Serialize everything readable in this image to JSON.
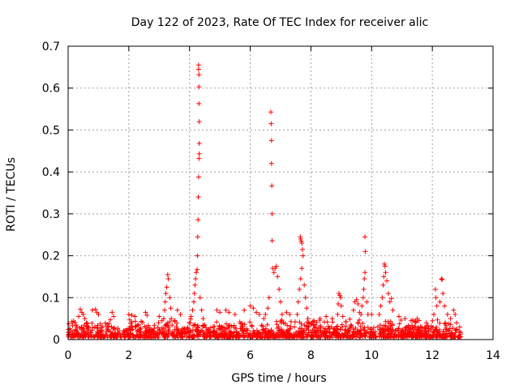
{
  "chart_data": {
    "type": "scatter",
    "title": "Day 122 of 2023, Rate Of TEC Index for receiver alic",
    "xlabel": "GPS time / hours",
    "ylabel": "ROTI / TECUs",
    "xlim": [
      0,
      14
    ],
    "ylim": [
      0,
      0.7
    ],
    "x_ticks": [
      "0",
      "2",
      "4",
      "6",
      "8",
      "10",
      "12",
      "14"
    ],
    "y_ticks": [
      "0",
      "0.1",
      "0.2",
      "0.3",
      "0.4",
      "0.5",
      "0.6",
      "0.7"
    ],
    "grid": true,
    "marker": "+",
    "marker_color": "#ff0000",
    "series": [
      {
        "points": [
          [
            4.3,
            0.655
          ],
          [
            4.3,
            0.645
          ],
          [
            4.31,
            0.632
          ],
          [
            4.31,
            0.603
          ],
          [
            4.31,
            0.563
          ],
          [
            4.32,
            0.52
          ],
          [
            4.32,
            0.468
          ],
          [
            4.32,
            0.443
          ],
          [
            4.31,
            0.432
          ],
          [
            4.3,
            0.388
          ],
          [
            4.29,
            0.34
          ],
          [
            4.28,
            0.286
          ],
          [
            4.27,
            0.245
          ],
          [
            4.26,
            0.2
          ],
          [
            4.25,
            0.167
          ],
          [
            4.22,
            0.16
          ],
          [
            4.2,
            0.145
          ],
          [
            4.18,
            0.13
          ],
          [
            4.16,
            0.11
          ],
          [
            4.14,
            0.09
          ],
          [
            4.1,
            0.07
          ],
          [
            4.05,
            0.055
          ],
          [
            4.02,
            0.04
          ],
          [
            4.35,
            0.1
          ],
          [
            4.4,
            0.07
          ],
          [
            4.45,
            0.05
          ],
          [
            4.5,
            0.035
          ],
          [
            6.68,
            0.543
          ],
          [
            6.69,
            0.515
          ],
          [
            6.7,
            0.475
          ],
          [
            6.7,
            0.42
          ],
          [
            6.71,
            0.367
          ],
          [
            6.72,
            0.3
          ],
          [
            6.72,
            0.236
          ],
          [
            6.74,
            0.17
          ],
          [
            6.78,
            0.16
          ],
          [
            6.82,
            0.17
          ],
          [
            6.86,
            0.175
          ],
          [
            6.9,
            0.15
          ],
          [
            6.95,
            0.12
          ],
          [
            7.0,
            0.09
          ],
          [
            7.05,
            0.06
          ],
          [
            6.62,
            0.1
          ],
          [
            6.58,
            0.075
          ],
          [
            6.5,
            0.06
          ],
          [
            6.45,
            0.05
          ],
          [
            7.65,
            0.245
          ],
          [
            7.66,
            0.24
          ],
          [
            7.68,
            0.235
          ],
          [
            7.7,
            0.23
          ],
          [
            7.72,
            0.215
          ],
          [
            7.74,
            0.2
          ],
          [
            7.7,
            0.17
          ],
          [
            7.66,
            0.145
          ],
          [
            7.62,
            0.12
          ],
          [
            7.78,
            0.13
          ],
          [
            7.82,
            0.1
          ],
          [
            7.86,
            0.075
          ],
          [
            7.9,
            0.05
          ],
          [
            7.58,
            0.09
          ],
          [
            7.55,
            0.06
          ],
          [
            9.78,
            0.245
          ],
          [
            9.79,
            0.21
          ],
          [
            9.78,
            0.16
          ],
          [
            9.76,
            0.145
          ],
          [
            9.74,
            0.12
          ],
          [
            9.72,
            0.1
          ],
          [
            9.68,
            0.08
          ],
          [
            9.65,
            0.06
          ],
          [
            9.84,
            0.09
          ],
          [
            9.88,
            0.06
          ],
          [
            10.42,
            0.18
          ],
          [
            10.44,
            0.175
          ],
          [
            10.46,
            0.16
          ],
          [
            10.4,
            0.15
          ],
          [
            10.38,
            0.13
          ],
          [
            10.5,
            0.14
          ],
          [
            10.55,
            0.11
          ],
          [
            10.6,
            0.09
          ],
          [
            10.65,
            0.098
          ],
          [
            10.7,
            0.07
          ],
          [
            10.35,
            0.1
          ],
          [
            10.3,
            0.08
          ],
          [
            10.25,
            0.06
          ],
          [
            12.3,
            0.145
          ],
          [
            12.32,
            0.143
          ],
          [
            12.35,
            0.11
          ],
          [
            12.25,
            0.09
          ],
          [
            12.4,
            0.08
          ],
          [
            12.5,
            0.06
          ],
          [
            12.6,
            0.05
          ],
          [
            12.7,
            0.07
          ],
          [
            12.75,
            0.06
          ],
          [
            12.8,
            0.04
          ],
          [
            12.1,
            0.12
          ],
          [
            12.12,
            0.1
          ],
          [
            12.15,
            0.08
          ],
          [
            12.05,
            0.06
          ],
          [
            3.28,
            0.155
          ],
          [
            3.3,
            0.145
          ],
          [
            3.25,
            0.125
          ],
          [
            3.22,
            0.11
          ],
          [
            3.2,
            0.09
          ],
          [
            3.18,
            0.07
          ],
          [
            3.15,
            0.05
          ],
          [
            3.35,
            0.1
          ],
          [
            3.38,
            0.075
          ],
          [
            3.4,
            0.05
          ],
          [
            8.92,
            0.11
          ],
          [
            8.95,
            0.105
          ],
          [
            8.98,
            0.1
          ],
          [
            8.9,
            0.085
          ],
          [
            9.0,
            0.08
          ],
          [
            8.88,
            0.06
          ],
          [
            9.05,
            0.055
          ],
          [
            9.45,
            0.09
          ],
          [
            9.5,
            0.095
          ],
          [
            9.55,
            0.085
          ],
          [
            9.4,
            0.07
          ],
          [
            9.6,
            0.065
          ],
          [
            0.4,
            0.072
          ],
          [
            0.45,
            0.065
          ],
          [
            0.5,
            0.06
          ],
          [
            0.35,
            0.055
          ],
          [
            0.55,
            0.05
          ],
          [
            0.8,
            0.07
          ],
          [
            0.9,
            0.072
          ],
          [
            0.95,
            0.065
          ],
          [
            1.0,
            0.06
          ],
          [
            1.45,
            0.065
          ],
          [
            1.5,
            0.055
          ],
          [
            2.0,
            0.06
          ],
          [
            2.1,
            0.058
          ],
          [
            2.2,
            0.055
          ],
          [
            2.55,
            0.065
          ],
          [
            2.6,
            0.058
          ],
          [
            3.0,
            0.055
          ],
          [
            3.6,
            0.07
          ],
          [
            3.7,
            0.06
          ],
          [
            4.9,
            0.07
          ],
          [
            5.0,
            0.065
          ],
          [
            5.2,
            0.07
          ],
          [
            5.3,
            0.065
          ],
          [
            5.5,
            0.06
          ],
          [
            5.8,
            0.07
          ],
          [
            6.0,
            0.08
          ],
          [
            6.1,
            0.075
          ],
          [
            6.2,
            0.065
          ],
          [
            6.3,
            0.06
          ],
          [
            7.2,
            0.065
          ],
          [
            7.3,
            0.06
          ],
          [
            8.1,
            0.045
          ],
          [
            8.3,
            0.05
          ],
          [
            8.5,
            0.055
          ],
          [
            8.7,
            0.05
          ],
          [
            10.0,
            0.06
          ],
          [
            10.9,
            0.055
          ],
          [
            11.1,
            0.05
          ],
          [
            11.3,
            0.045
          ],
          [
            11.5,
            0.05
          ],
          [
            11.8,
            0.04
          ],
          [
            12.9,
            0.03
          ]
        ]
      }
    ]
  }
}
